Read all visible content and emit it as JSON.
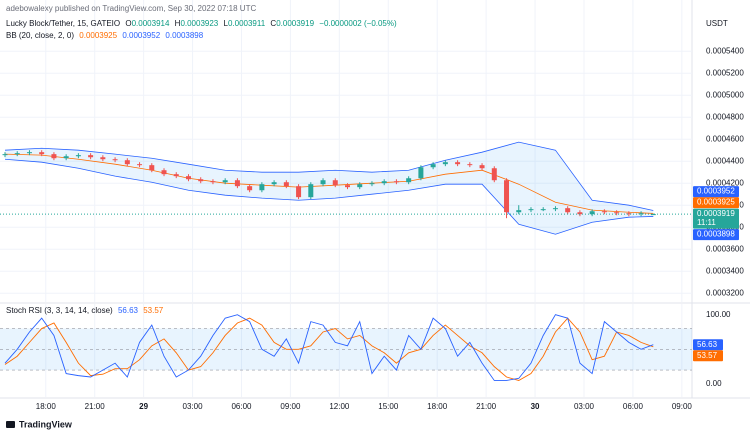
{
  "header": {
    "published": "adebowalexy published on TradingView.com, Sep 30, 2022 07:18 UTC"
  },
  "footer": {
    "brand": "TradingView"
  },
  "chart_data": [
    {
      "type": "candlestick",
      "title": "Lucky Block/Tether, 15, GATEIO",
      "ohlc_keys": [
        "O",
        "H",
        "L",
        "C"
      ],
      "change_text": "−0.0000002 (−0.05%)",
      "currency": "USDT",
      "countdown": "11:11",
      "up_color": "#26a69a",
      "down_color": "#ef5350",
      "x": [
        0,
        3,
        6,
        9,
        12,
        15,
        18,
        21,
        24,
        27,
        30,
        33,
        36,
        39,
        42,
        45,
        48,
        51,
        54,
        57,
        60,
        63,
        66,
        69,
        72,
        75,
        78,
        81,
        84,
        87,
        90,
        93,
        96,
        99,
        102,
        105,
        108,
        111,
        114,
        117,
        120,
        123,
        126,
        129,
        132,
        135,
        138,
        141,
        144,
        147,
        150,
        153,
        156,
        159
      ],
      "open": [
        0.0004455,
        0.0004464,
        0.0004473,
        0.0004482,
        0.0004464,
        0.0004427,
        0.0004445,
        0.0004455,
        0.0004436,
        0.0004418,
        0.0004409,
        0.0004373,
        0.0004364,
        0.0004318,
        0.0004282,
        0.0004264,
        0.0004236,
        0.0004218,
        0.0004209,
        0.0004227,
        0.0004173,
        0.0004136,
        0.0004191,
        0.0004209,
        0.0004173,
        0.0004073,
        0.0004191,
        0.0004227,
        0.0004182,
        0.0004164,
        0.0004191,
        0.00042,
        0.0004218,
        0.0004209,
        0.0004245,
        0.0004345,
        0.0004373,
        0.0004391,
        0.0004373,
        0.0004364,
        0.0004336,
        0.0004227,
        0.0003936,
        0.0003955,
        0.0003964,
        0.0003964,
        0.0003973,
        0.0003936,
        0.0003918,
        0.0003945,
        0.0003936,
        0.0003927,
        0.0003918,
        0.0003914
      ],
      "high": [
        0.0004482,
        0.0004491,
        0.00045,
        0.00045,
        0.0004482,
        0.0004463,
        0.0004473,
        0.0004473,
        0.0004454,
        0.0004436,
        0.0004427,
        0.0004391,
        0.0004382,
        0.0004336,
        0.00043,
        0.0004282,
        0.0004254,
        0.0004236,
        0.0004245,
        0.0004245,
        0.0004191,
        0.0004209,
        0.0004227,
        0.0004227,
        0.0004191,
        0.0004209,
        0.0004245,
        0.0004245,
        0.00042,
        0.0004209,
        0.0004218,
        0.0004236,
        0.0004236,
        0.0004263,
        0.0004363,
        0.0004391,
        0.0004409,
        0.0004409,
        0.0004391,
        0.0004382,
        0.0004354,
        0.0004245,
        0.0004,
        0.0003982,
        0.0003982,
        0.0003991,
        0.0003991,
        0.0003954,
        0.0003963,
        0.0003963,
        0.0003954,
        0.0003945,
        0.0003945,
        0.0003923
      ],
      "low": [
        0.0004437,
        0.0004446,
        0.0004455,
        0.0004446,
        0.0004409,
        0.0004409,
        0.0004427,
        0.0004418,
        0.00044,
        0.0004391,
        0.0004355,
        0.0004346,
        0.00043,
        0.0004264,
        0.0004246,
        0.0004218,
        0.00042,
        0.0004191,
        0.0004191,
        0.0004155,
        0.0004118,
        0.0004118,
        0.0004173,
        0.0004155,
        0.0004055,
        0.0004055,
        0.0004173,
        0.0004164,
        0.0004146,
        0.0004146,
        0.0004173,
        0.0004182,
        0.0004191,
        0.0004191,
        0.0004227,
        0.0004327,
        0.0004355,
        0.0004355,
        0.0004346,
        0.0004318,
        0.0004209,
        0.0003882,
        0.0003918,
        0.0003937,
        0.0003946,
        0.0003946,
        0.0003918,
        0.00039,
        0.00039,
        0.0003918,
        0.0003909,
        0.00039,
        0.00039,
        0.0003911
      ],
      "close": [
        0.0004464,
        0.0004473,
        0.0004482,
        0.0004464,
        0.0004427,
        0.0004445,
        0.0004455,
        0.0004436,
        0.0004418,
        0.0004409,
        0.0004373,
        0.0004364,
        0.0004318,
        0.0004282,
        0.0004264,
        0.0004236,
        0.0004218,
        0.0004209,
        0.0004227,
        0.0004173,
        0.0004136,
        0.0004191,
        0.0004209,
        0.0004173,
        0.0004073,
        0.0004191,
        0.0004227,
        0.0004182,
        0.0004164,
        0.0004191,
        0.00042,
        0.0004218,
        0.0004209,
        0.0004245,
        0.0004345,
        0.0004373,
        0.0004391,
        0.0004373,
        0.0004364,
        0.0004336,
        0.0004227,
        0.0003936,
        0.0003955,
        0.0003964,
        0.0003964,
        0.0003973,
        0.0003936,
        0.0003918,
        0.0003945,
        0.0003936,
        0.0003927,
        0.0003918,
        0.0003927,
        0.0003919
      ],
      "xlim": [
        0,
        168
      ],
      "xticks": [
        {
          "value": 10,
          "label": "18:00"
        },
        {
          "value": 22,
          "label": "21:00"
        },
        {
          "value": 34,
          "label": "29"
        },
        {
          "value": 46,
          "label": "03:00"
        },
        {
          "value": 58,
          "label": "06:00"
        },
        {
          "value": 70,
          "label": "09:00"
        },
        {
          "value": 82,
          "label": "12:00"
        },
        {
          "value": 94,
          "label": "15:00"
        },
        {
          "value": 106,
          "label": "18:00"
        },
        {
          "value": 118,
          "label": "21:00"
        },
        {
          "value": 130,
          "label": "30"
        },
        {
          "value": 142,
          "label": "03:00"
        },
        {
          "value": 154,
          "label": "06:00"
        },
        {
          "value": 166,
          "label": "09:00"
        }
      ],
      "ylim": [
        0.000312,
        0.000572
      ],
      "yticks": [
        {
          "value": 0.00032,
          "label": "0.0003200"
        },
        {
          "value": 0.00034,
          "label": "0.0003400"
        },
        {
          "value": 0.00036,
          "label": "0.0003600"
        },
        {
          "value": 0.00038,
          "label": "0.0003800"
        },
        {
          "value": 0.0004,
          "label": "0.0004000"
        },
        {
          "value": 0.00042,
          "label": "0.0004200"
        },
        {
          "value": 0.00044,
          "label": "0.0004400"
        },
        {
          "value": 0.00046,
          "label": "0.0004600"
        },
        {
          "value": 0.00048,
          "label": "0.0004800"
        },
        {
          "value": 0.0005,
          "label": "0.0005000"
        },
        {
          "value": 0.00052,
          "label": "0.0005200"
        },
        {
          "value": 0.00054,
          "label": "0.0005400"
        }
      ],
      "grid": true,
      "bollinger": {
        "name": "BB (20, close, 2, 0)",
        "band_color": "#2962ff",
        "basis_color": "#ff6d00",
        "fill": "#2196f3",
        "x": [
          0,
          9,
          18,
          27,
          36,
          45,
          54,
          63,
          72,
          81,
          90,
          99,
          108,
          117,
          126,
          135,
          144,
          153,
          159
        ],
        "upper": [
          0.00045,
          0.0004518,
          0.00045,
          0.0004464,
          0.0004427,
          0.0004373,
          0.0004318,
          0.00043,
          0.00043,
          0.0004318,
          0.00043,
          0.0004318,
          0.0004409,
          0.0004482,
          0.0004573,
          0.00045,
          0.0004045,
          0.0004,
          0.0003952
        ],
        "basis": [
          0.0004464,
          0.0004455,
          0.0004418,
          0.0004373,
          0.0004318,
          0.0004245,
          0.00042,
          0.0004182,
          0.0004164,
          0.0004182,
          0.00042,
          0.0004218,
          0.0004282,
          0.0004318,
          0.0004191,
          0.0004027,
          0.0003955,
          0.0003936,
          0.0003925
        ],
        "lower": [
          0.0004418,
          0.0004391,
          0.0004336,
          0.0004264,
          0.0004209,
          0.0004136,
          0.0004091,
          0.0004064,
          0.0004045,
          0.0004064,
          0.00041,
          0.0004136,
          0.0004191,
          0.0004191,
          0.0003827,
          0.0003736,
          0.0003845,
          0.0003891,
          0.0003898
        ]
      }
    },
    {
      "type": "line",
      "title": "Stoch RSI (3, 3, 14, 14, close)",
      "x": [
        0,
        3,
        6,
        9,
        12,
        15,
        18,
        21,
        24,
        27,
        30,
        33,
        36,
        39,
        42,
        45,
        48,
        51,
        54,
        57,
        60,
        63,
        66,
        69,
        72,
        75,
        78,
        81,
        84,
        87,
        90,
        93,
        96,
        99,
        102,
        105,
        108,
        111,
        114,
        117,
        120,
        123,
        126,
        129,
        132,
        135,
        138,
        141,
        144,
        147,
        150,
        153,
        156,
        159
      ],
      "series": [
        {
          "color": "#2962ff",
          "values": [
            30,
            50,
            75,
            95,
            70,
            15,
            12,
            10,
            20,
            30,
            10,
            60,
            85,
            40,
            10,
            20,
            40,
            70,
            95,
            100,
            90,
            50,
            40,
            65,
            30,
            90,
            85,
            60,
            55,
            90,
            15,
            40,
            20,
            70,
            50,
            95,
            80,
            40,
            60,
            30,
            5,
            5,
            8,
            30,
            70,
            100,
            95,
            30,
            15,
            90,
            75,
            60,
            50,
            56.63
          ]
        },
        {
          "color": "#ff6d00",
          "values": [
            28,
            40,
            60,
            80,
            88,
            60,
            30,
            12,
            14,
            22,
            22,
            35,
            55,
            65,
            45,
            20,
            25,
            45,
            70,
            88,
            95,
            85,
            60,
            50,
            50,
            55,
            75,
            80,
            65,
            70,
            55,
            45,
            30,
            45,
            50,
            70,
            85,
            70,
            55,
            45,
            25,
            10,
            5,
            15,
            40,
            75,
            95,
            75,
            35,
            40,
            75,
            70,
            60,
            53.57
          ]
        }
      ],
      "xlim": [
        0,
        168
      ],
      "ylim": [
        -16,
        114
      ],
      "yticks": [
        {
          "value": 0,
          "label": "0.00"
        },
        {
          "value": 100,
          "label": "100.00"
        }
      ],
      "bands": {
        "upper": 80,
        "middle": 50,
        "lower": 20
      },
      "band_fill": "#2196f3"
    }
  ]
}
